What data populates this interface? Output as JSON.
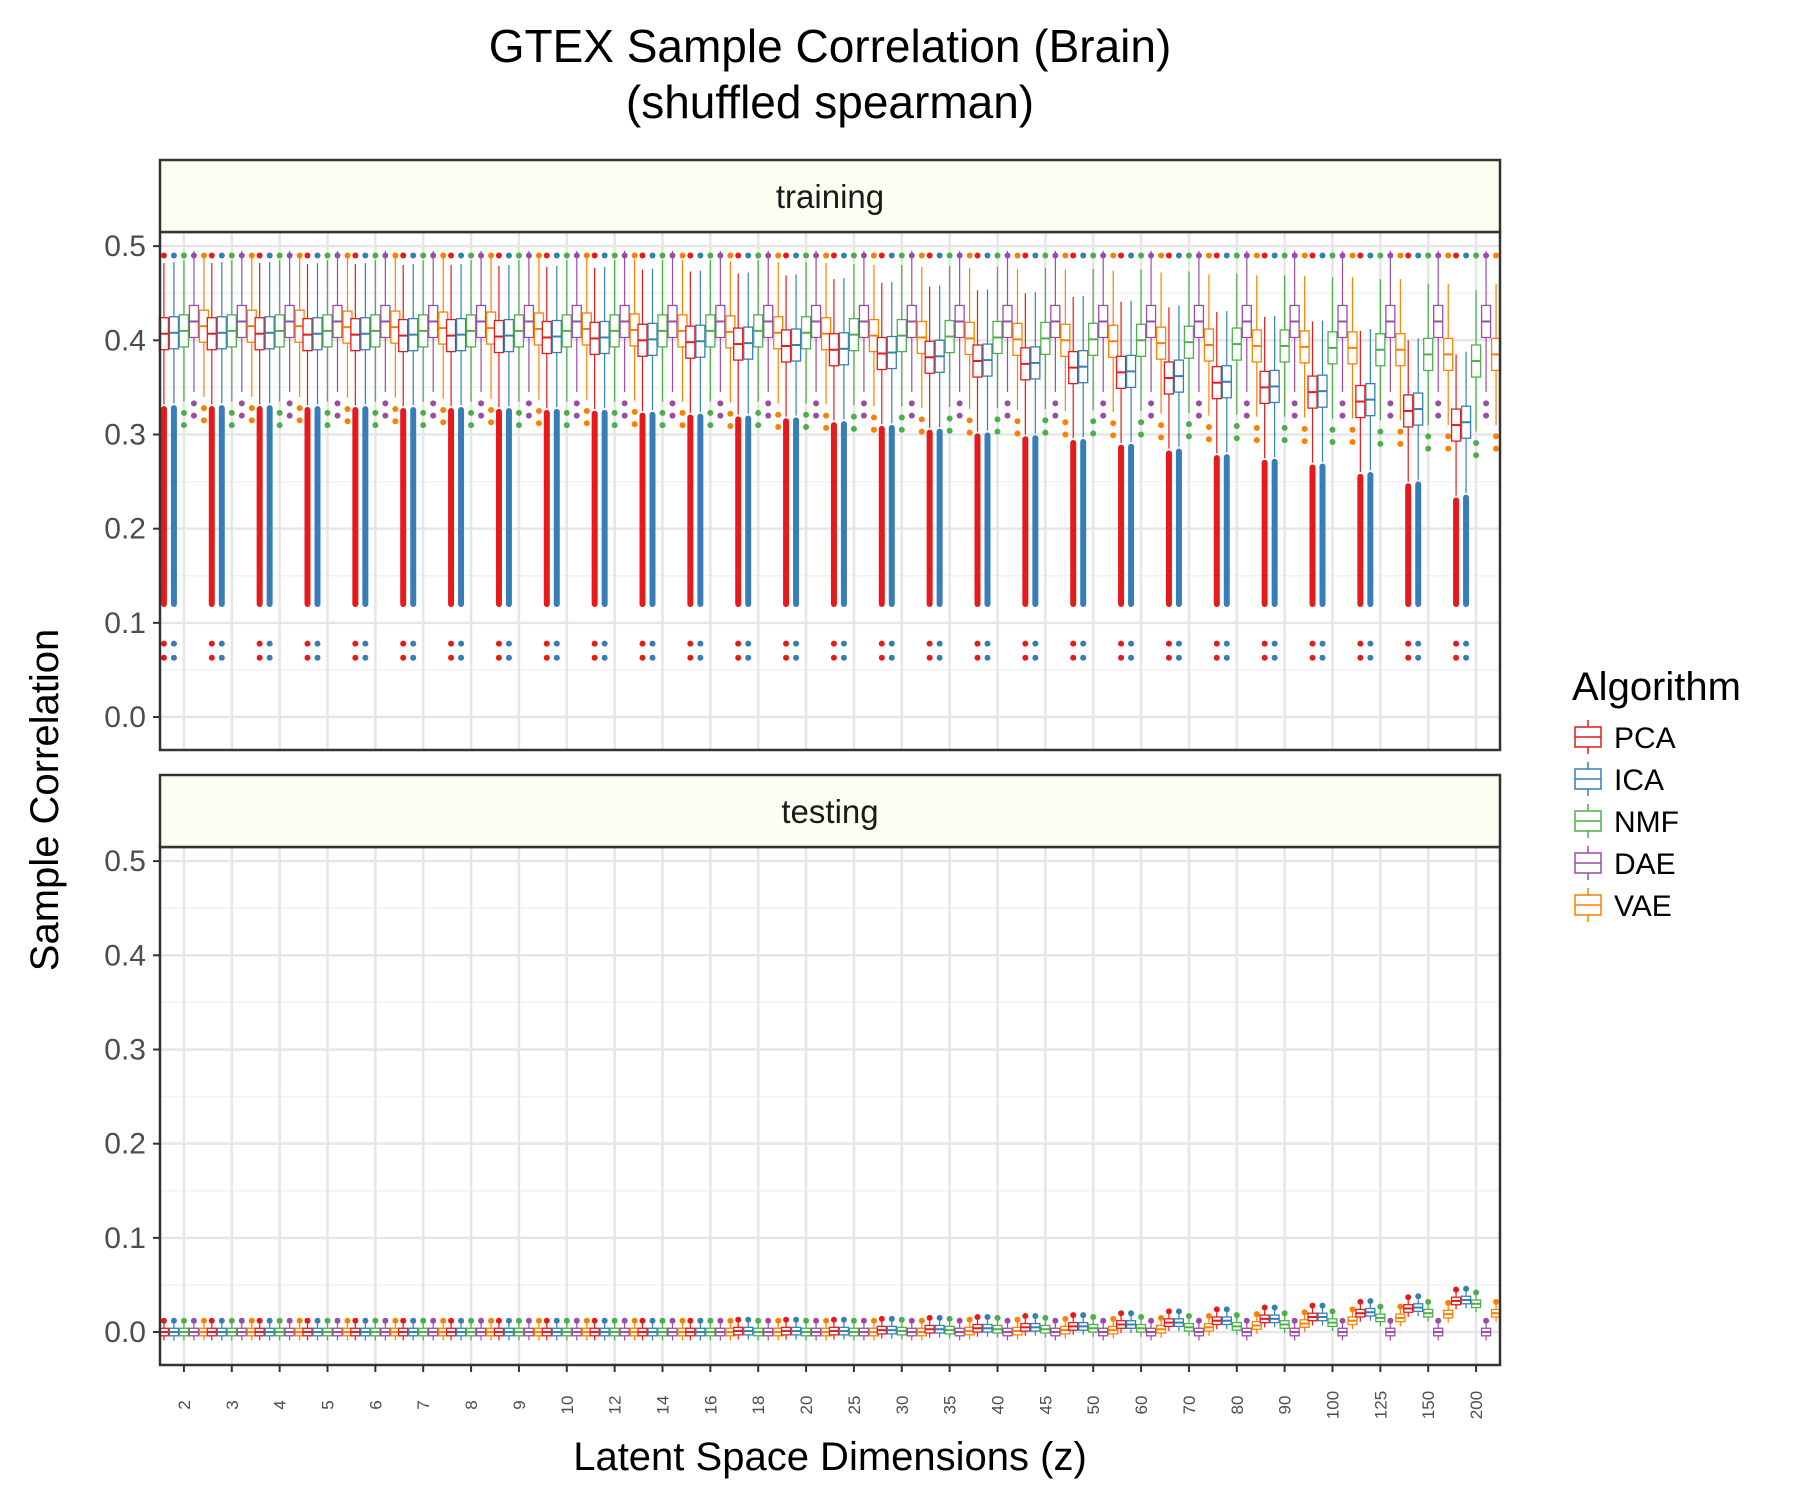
{
  "chart_data": {
    "type": "boxplot",
    "title_line1": "GTEX Sample Correlation (Brain)",
    "title_line2": "(shuffled spearman)",
    "xlabel": "Latent Space Dimensions (z)",
    "ylabel": "Sample Correlation",
    "ylim": [
      -0.035,
      0.515
    ],
    "yticks": [
      "0.0",
      "0.1",
      "0.2",
      "0.3",
      "0.4",
      "0.5"
    ],
    "grid": true,
    "legend_position": "right",
    "legend_title": "Algorithm",
    "categories": [
      "2",
      "3",
      "4",
      "5",
      "6",
      "7",
      "8",
      "9",
      "10",
      "12",
      "14",
      "16",
      "18",
      "20",
      "25",
      "30",
      "35",
      "40",
      "45",
      "50",
      "60",
      "70",
      "80",
      "90",
      "100",
      "125",
      "150",
      "200"
    ],
    "series": [
      {
        "name": "PCA",
        "color": "#E41A1C"
      },
      {
        "name": "ICA",
        "color": "#377EB8"
      },
      {
        "name": "NMF",
        "color": "#4DAF4A"
      },
      {
        "name": "DAE",
        "color": "#984EA3"
      },
      {
        "name": "VAE",
        "color": "#FF7F00"
      }
    ],
    "panels": [
      {
        "label": "training",
        "medians": {
          "PCA": [
            0.407,
            0.407,
            0.407,
            0.406,
            0.406,
            0.405,
            0.405,
            0.404,
            0.403,
            0.402,
            0.4,
            0.398,
            0.396,
            0.394,
            0.39,
            0.386,
            0.382,
            0.378,
            0.375,
            0.371,
            0.366,
            0.36,
            0.355,
            0.35,
            0.345,
            0.335,
            0.325,
            0.31
          ],
          "ICA": [
            0.408,
            0.408,
            0.408,
            0.407,
            0.407,
            0.406,
            0.406,
            0.405,
            0.404,
            0.403,
            0.401,
            0.399,
            0.397,
            0.395,
            0.391,
            0.387,
            0.383,
            0.379,
            0.376,
            0.372,
            0.367,
            0.362,
            0.356,
            0.351,
            0.346,
            0.337,
            0.327,
            0.313
          ],
          "NMF": [
            0.41,
            0.41,
            0.41,
            0.41,
            0.41,
            0.41,
            0.41,
            0.41,
            0.41,
            0.41,
            0.41,
            0.41,
            0.41,
            0.408,
            0.406,
            0.405,
            0.404,
            0.403,
            0.402,
            0.401,
            0.4,
            0.398,
            0.396,
            0.394,
            0.392,
            0.39,
            0.385,
            0.378
          ],
          "DAE": [
            0.42,
            0.42,
            0.42,
            0.42,
            0.42,
            0.42,
            0.42,
            0.42,
            0.42,
            0.42,
            0.42,
            0.42,
            0.42,
            0.42,
            0.42,
            0.42,
            0.42,
            0.42,
            0.42,
            0.42,
            0.42,
            0.42,
            0.42,
            0.42,
            0.42,
            0.42,
            0.42,
            0.42
          ],
          "VAE": [
            0.415,
            0.415,
            0.415,
            0.414,
            0.414,
            0.413,
            0.413,
            0.412,
            0.412,
            0.411,
            0.41,
            0.409,
            0.408,
            0.407,
            0.405,
            0.403,
            0.402,
            0.401,
            0.4,
            0.399,
            0.397,
            0.395,
            0.394,
            0.393,
            0.392,
            0.39,
            0.385,
            0.385
          ]
        }
      },
      {
        "label": "testing",
        "medians": {
          "PCA": [
            0.0,
            0.0,
            0.0,
            0.0,
            0.0,
            0.0,
            0.0,
            0.0,
            0.0,
            0.0,
            0.0,
            0.0,
            0.001,
            0.001,
            0.001,
            0.002,
            0.003,
            0.004,
            0.005,
            0.006,
            0.008,
            0.01,
            0.012,
            0.014,
            0.016,
            0.02,
            0.025,
            0.033
          ],
          "ICA": [
            0.0,
            0.0,
            0.0,
            0.0,
            0.0,
            0.0,
            0.0,
            0.0,
            0.0,
            0.0,
            0.0,
            0.0,
            0.001,
            0.001,
            0.001,
            0.002,
            0.003,
            0.004,
            0.005,
            0.006,
            0.008,
            0.01,
            0.012,
            0.014,
            0.016,
            0.021,
            0.026,
            0.034
          ],
          "NMF": [
            0.0,
            0.0,
            0.0,
            0.0,
            0.0,
            0.0,
            0.0,
            0.0,
            0.0,
            0.0,
            0.0,
            0.0,
            0.0,
            0.0,
            0.0,
            0.001,
            0.002,
            0.003,
            0.003,
            0.004,
            0.004,
            0.005,
            0.006,
            0.008,
            0.01,
            0.015,
            0.02,
            0.03
          ],
          "DAE": [
            0.0,
            0.0,
            0.0,
            0.0,
            0.0,
            0.0,
            0.0,
            0.0,
            0.0,
            0.0,
            0.0,
            0.0,
            0.0,
            0.0,
            0.0,
            0.0,
            0.0,
            0.0,
            0.0,
            0.0,
            0.0,
            0.0,
            0.0,
            0.0,
            0.0,
            0.0,
            0.0,
            0.0
          ],
          "VAE": [
            0.0,
            0.0,
            0.0,
            0.0,
            0.0,
            0.0,
            0.0,
            0.0,
            0.0,
            0.0,
            0.0,
            0.0,
            0.0,
            0.0,
            0.0,
            0.0,
            0.001,
            0.001,
            0.002,
            0.002,
            0.003,
            0.005,
            0.007,
            0.009,
            0.012,
            0.015,
            0.019,
            0.02
          ]
        }
      }
    ]
  }
}
